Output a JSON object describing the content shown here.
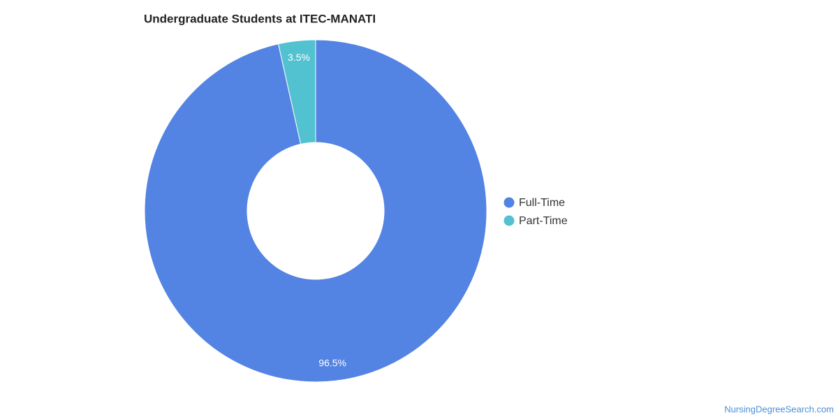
{
  "chart_data": {
    "type": "pie",
    "title": "Undergraduate Students at ITEC-MANATI",
    "categories": [
      "Full-Time",
      "Part-Time"
    ],
    "values": [
      96.5,
      3.5
    ],
    "value_labels": [
      "96.5%",
      "3.5%"
    ],
    "colors": [
      "#5383e3",
      "#52c2d0"
    ],
    "donut": true,
    "legend": "right",
    "source": "NursingDegreeSearch.com"
  }
}
